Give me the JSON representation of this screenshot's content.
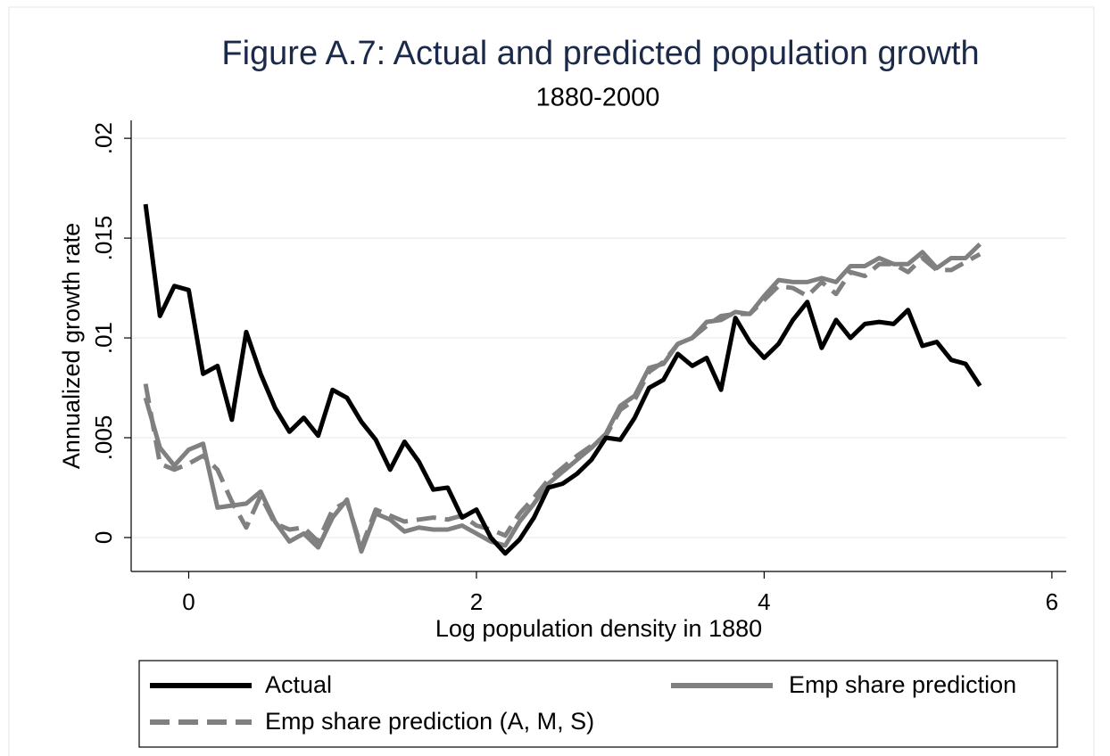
{
  "chart_data": {
    "type": "line",
    "title": "Figure A.7:  Actual and predicted population growth",
    "subtitle": "1880-2000",
    "x_label": "Log population density in 1880",
    "y_label": "Annualized growth rate",
    "x": [
      -0.3,
      -0.2,
      -0.1,
      0,
      0.1,
      0.2,
      0.3,
      0.4,
      0.5,
      0.6,
      0.7,
      0.8,
      0.9,
      1.0,
      1.1,
      1.2,
      1.3,
      1.4,
      1.5,
      1.6,
      1.7,
      1.8,
      1.9,
      2.0,
      2.1,
      2.2,
      2.3,
      2.4,
      2.5,
      2.6,
      2.7,
      2.8,
      2.9,
      3.0,
      3.1,
      3.2,
      3.3,
      3.4,
      3.5,
      3.6,
      3.7,
      3.8,
      3.9,
      4.0,
      4.1,
      4.2,
      4.3,
      4.4,
      4.5,
      4.6,
      4.7,
      4.8,
      4.9,
      5.0,
      5.1,
      5.2,
      5.3,
      5.4,
      5.5
    ],
    "series": [
      {
        "name": "Actual",
        "color": "#000000",
        "style": "solid",
        "values": [
          0.0167,
          0.0111,
          0.0126,
          0.0124,
          0.0082,
          0.0086,
          0.0059,
          0.0103,
          0.0082,
          0.0065,
          0.0053,
          0.006,
          0.0051,
          0.0074,
          0.007,
          0.0058,
          0.0049,
          0.0034,
          0.0048,
          0.0038,
          0.0024,
          0.0025,
          0.001,
          0.0014,
          0.0,
          -0.0008,
          -0.0001,
          0.001,
          0.0025,
          0.0027,
          0.0032,
          0.0039,
          0.005,
          0.0049,
          0.006,
          0.0075,
          0.0079,
          0.0092,
          0.0086,
          0.009,
          0.0074,
          0.011,
          0.0098,
          0.009,
          0.0097,
          0.0109,
          0.0118,
          0.0095,
          0.0109,
          0.01,
          0.0107,
          0.0108,
          0.0107,
          0.0114,
          0.0096,
          0.0098,
          0.0089,
          0.0087,
          0.0076
        ]
      },
      {
        "name": "Emp share prediction",
        "color": "#808080",
        "style": "solid",
        "values": [
          0.007,
          0.0045,
          0.0036,
          0.0044,
          0.0047,
          0.0015,
          0.0016,
          0.0017,
          0.0023,
          0.0008,
          -0.0002,
          0.0002,
          -0.0005,
          0.001,
          0.0019,
          -0.0007,
          0.0012,
          0.0009,
          0.0003,
          0.0005,
          0.0004,
          0.0004,
          0.0006,
          0.0002,
          -0.0002,
          -0.0004,
          0.0008,
          0.0017,
          0.0027,
          0.0033,
          0.0039,
          0.0045,
          0.0052,
          0.0066,
          0.0071,
          0.0085,
          0.0087,
          0.0097,
          0.01,
          0.0108,
          0.0109,
          0.0113,
          0.0112,
          0.0121,
          0.0129,
          0.0128,
          0.0128,
          0.013,
          0.0128,
          0.0136,
          0.0136,
          0.014,
          0.0137,
          0.0137,
          0.0143,
          0.0135,
          0.014,
          0.014,
          0.0147
        ]
      },
      {
        "name": "Emp share prediction (A, M, S)",
        "color": "#808080",
        "style": "dashed",
        "values": [
          0.0077,
          0.0037,
          0.0034,
          0.0037,
          0.0041,
          0.0034,
          0.0018,
          0.0005,
          0.0021,
          0.0007,
          0.0004,
          0.0005,
          -0.0002,
          0.0014,
          0.0018,
          -0.0005,
          0.0014,
          0.0011,
          0.0008,
          0.0009,
          0.001,
          0.0009,
          0.0011,
          0.0006,
          0.0004,
          0.0001,
          0.0012,
          0.002,
          0.0029,
          0.0035,
          0.0041,
          0.0046,
          0.0051,
          0.0064,
          0.0069,
          0.0083,
          0.0088,
          0.0097,
          0.01,
          0.0106,
          0.0111,
          0.0112,
          0.0112,
          0.0119,
          0.0126,
          0.0125,
          0.0121,
          0.0128,
          0.0122,
          0.0133,
          0.0131,
          0.0137,
          0.0137,
          0.0133,
          0.014,
          0.0134,
          0.0134,
          0.0138,
          0.0142
        ]
      }
    ],
    "xlim": [
      -0.4,
      6.1
    ],
    "ylim": [
      -0.0017,
      0.0209
    ],
    "xticks": [
      0,
      2,
      4,
      6
    ],
    "yticks": [
      0,
      {
        "value": 0.005,
        "label": ".005"
      },
      {
        "value": 0.01,
        "label": ".01"
      },
      {
        "value": 0.015,
        "label": ".015"
      },
      {
        "value": 0.02,
        "label": ".02"
      }
    ],
    "grid": true
  }
}
